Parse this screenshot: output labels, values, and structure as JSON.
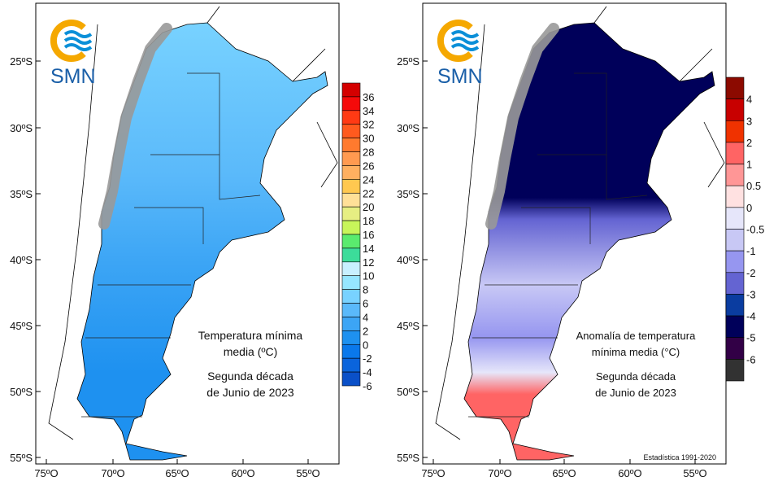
{
  "logo": {
    "text": "SMN"
  },
  "lat_labels": [
    "25ºS",
    "30ºS",
    "35ºS",
    "40ºS",
    "45ºS",
    "50ºS",
    "55ºS"
  ],
  "lon_labels": [
    "75ºO",
    "70ºO",
    "65ºO",
    "60ºO",
    "55ºO"
  ],
  "left_map": {
    "title_lines": [
      "Temperatura mínima",
      "media (ºC)"
    ],
    "period_lines": [
      "Segunda década",
      "de Junio de 2023"
    ],
    "legend": {
      "labels": [
        "36",
        "34",
        "32",
        "30",
        "28",
        "26",
        "24",
        "22",
        "20",
        "18",
        "16",
        "14",
        "12",
        "10",
        "8",
        "6",
        "4",
        "2",
        "0",
        "-2",
        "-4",
        "-6"
      ],
      "colors": [
        "#d40000",
        "#f50a0a",
        "#ff3a14",
        "#ff5a1e",
        "#ff7a2e",
        "#ff9a50",
        "#ffb060",
        "#ffc850",
        "#ffe098",
        "#e6ee82",
        "#c8f55a",
        "#5aeb6e",
        "#3cdc9a",
        "#c8f0ff",
        "#96e6ff",
        "#78d2ff",
        "#5ab9fa",
        "#3ca5f5",
        "#1e91f0",
        "#0a78eb",
        "#0a64dc",
        "#0a50c8"
      ]
    }
  },
  "right_map": {
    "title_lines": [
      "Anomalía de temperatura",
      "mínima media (°C)"
    ],
    "period_lines": [
      "Segunda década",
      "de Junio de 2023"
    ],
    "footnote": "Estadística 1991-2020",
    "legend": {
      "labels": [
        "4",
        "3",
        "2",
        "1",
        "0.5",
        "0",
        "-0.5",
        "-1",
        "-2",
        "-3",
        "-4",
        "-5",
        "-6"
      ],
      "colors": [
        "#8c0a00",
        "#c80000",
        "#f03200",
        "#ff6464",
        "#ff9696",
        "#ffe1e1",
        "#e6e6fa",
        "#c8c8f5",
        "#9696f0",
        "#6464d2",
        "#0a3ca0",
        "#00005a",
        "#320046",
        "#323232"
      ]
    }
  }
}
